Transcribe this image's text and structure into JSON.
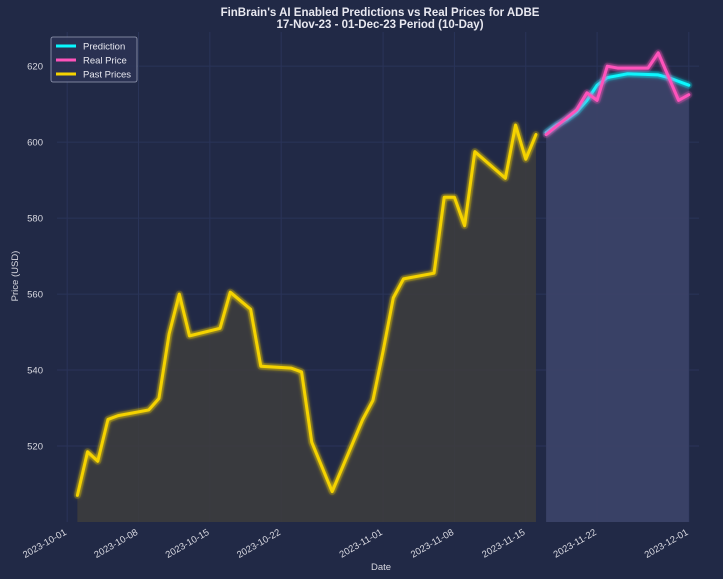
{
  "chart_data": {
    "type": "line",
    "title": "FinBrain's AI Enabled Predictions vs Real Prices for ADBE",
    "subtitle": "17-Nov-23 - 01-Dec-23 Period (10-Day)",
    "xlabel": "Date",
    "ylabel": "Price (USD)",
    "ylim": [
      500,
      629
    ],
    "xlim": [
      "2023-09-30",
      "2023-12-02"
    ],
    "y_ticks": [
      520,
      540,
      560,
      580,
      600,
      620
    ],
    "x_ticks": [
      "2023-10-01",
      "2023-10-08",
      "2023-10-15",
      "2023-10-22",
      "2023-11-01",
      "2023-11-08",
      "2023-11-15",
      "2023-11-22",
      "2023-12-01"
    ],
    "grid": true,
    "legend_position": "top-left",
    "series": [
      {
        "name": "Prediction",
        "color": "#08F7FE",
        "points": [
          [
            "2023-11-17",
            602.5
          ],
          [
            "2023-11-18",
            604.5
          ],
          [
            "2023-11-19",
            606
          ],
          [
            "2023-11-20",
            608
          ],
          [
            "2023-11-21",
            611
          ],
          [
            "2023-11-22",
            615
          ],
          [
            "2023-11-23",
            617
          ],
          [
            "2023-11-24",
            617.5
          ],
          [
            "2023-11-25",
            618
          ],
          [
            "2023-11-28",
            617.7
          ],
          [
            "2023-11-29",
            617
          ],
          [
            "2023-11-30",
            616
          ],
          [
            "2023-12-01",
            615
          ]
        ]
      },
      {
        "name": "Real Price",
        "color": "#FE53BB",
        "points": [
          [
            "2023-11-17",
            602
          ],
          [
            "2023-11-20",
            608.5
          ],
          [
            "2023-11-21",
            613
          ],
          [
            "2023-11-22",
            611
          ],
          [
            "2023-11-23",
            620
          ],
          [
            "2023-11-24",
            619.5
          ],
          [
            "2023-11-27",
            619.5
          ],
          [
            "2023-11-28",
            623.5
          ],
          [
            "2023-11-30",
            611
          ],
          [
            "2023-12-01",
            612.5
          ]
        ]
      },
      {
        "name": "Past Prices",
        "color": "#F5D300",
        "points": [
          [
            "2023-10-02",
            507
          ],
          [
            "2023-10-03",
            518.5
          ],
          [
            "2023-10-04",
            516
          ],
          [
            "2023-10-05",
            527
          ],
          [
            "2023-10-06",
            528
          ],
          [
            "2023-10-09",
            529.5
          ],
          [
            "2023-10-10",
            532.5
          ],
          [
            "2023-10-11",
            549.5
          ],
          [
            "2023-10-12",
            560
          ],
          [
            "2023-10-13",
            549
          ],
          [
            "2023-10-16",
            551
          ],
          [
            "2023-10-17",
            560.5
          ],
          [
            "2023-10-19",
            556
          ],
          [
            "2023-10-20",
            541
          ],
          [
            "2023-10-23",
            540.5
          ],
          [
            "2023-10-24",
            539.5
          ],
          [
            "2023-10-25",
            521
          ],
          [
            "2023-10-27",
            508
          ],
          [
            "2023-10-30",
            527
          ],
          [
            "2023-10-31",
            532
          ],
          [
            "2023-11-01",
            545
          ],
          [
            "2023-11-02",
            559
          ],
          [
            "2023-11-03",
            564
          ],
          [
            "2023-11-06",
            565.5
          ],
          [
            "2023-11-07",
            585.5
          ],
          [
            "2023-11-08",
            585.5
          ],
          [
            "2023-11-09",
            578
          ],
          [
            "2023-11-10",
            597.5
          ],
          [
            "2023-11-13",
            590.5
          ],
          [
            "2023-11-14",
            604.5
          ],
          [
            "2023-11-15",
            595.5
          ],
          [
            "2023-11-16",
            602
          ]
        ]
      }
    ]
  },
  "colors": {
    "background": "#212946",
    "grid": "#2A3459",
    "past_fill": "#3d3d3d",
    "future_fill": "#3b4268"
  }
}
